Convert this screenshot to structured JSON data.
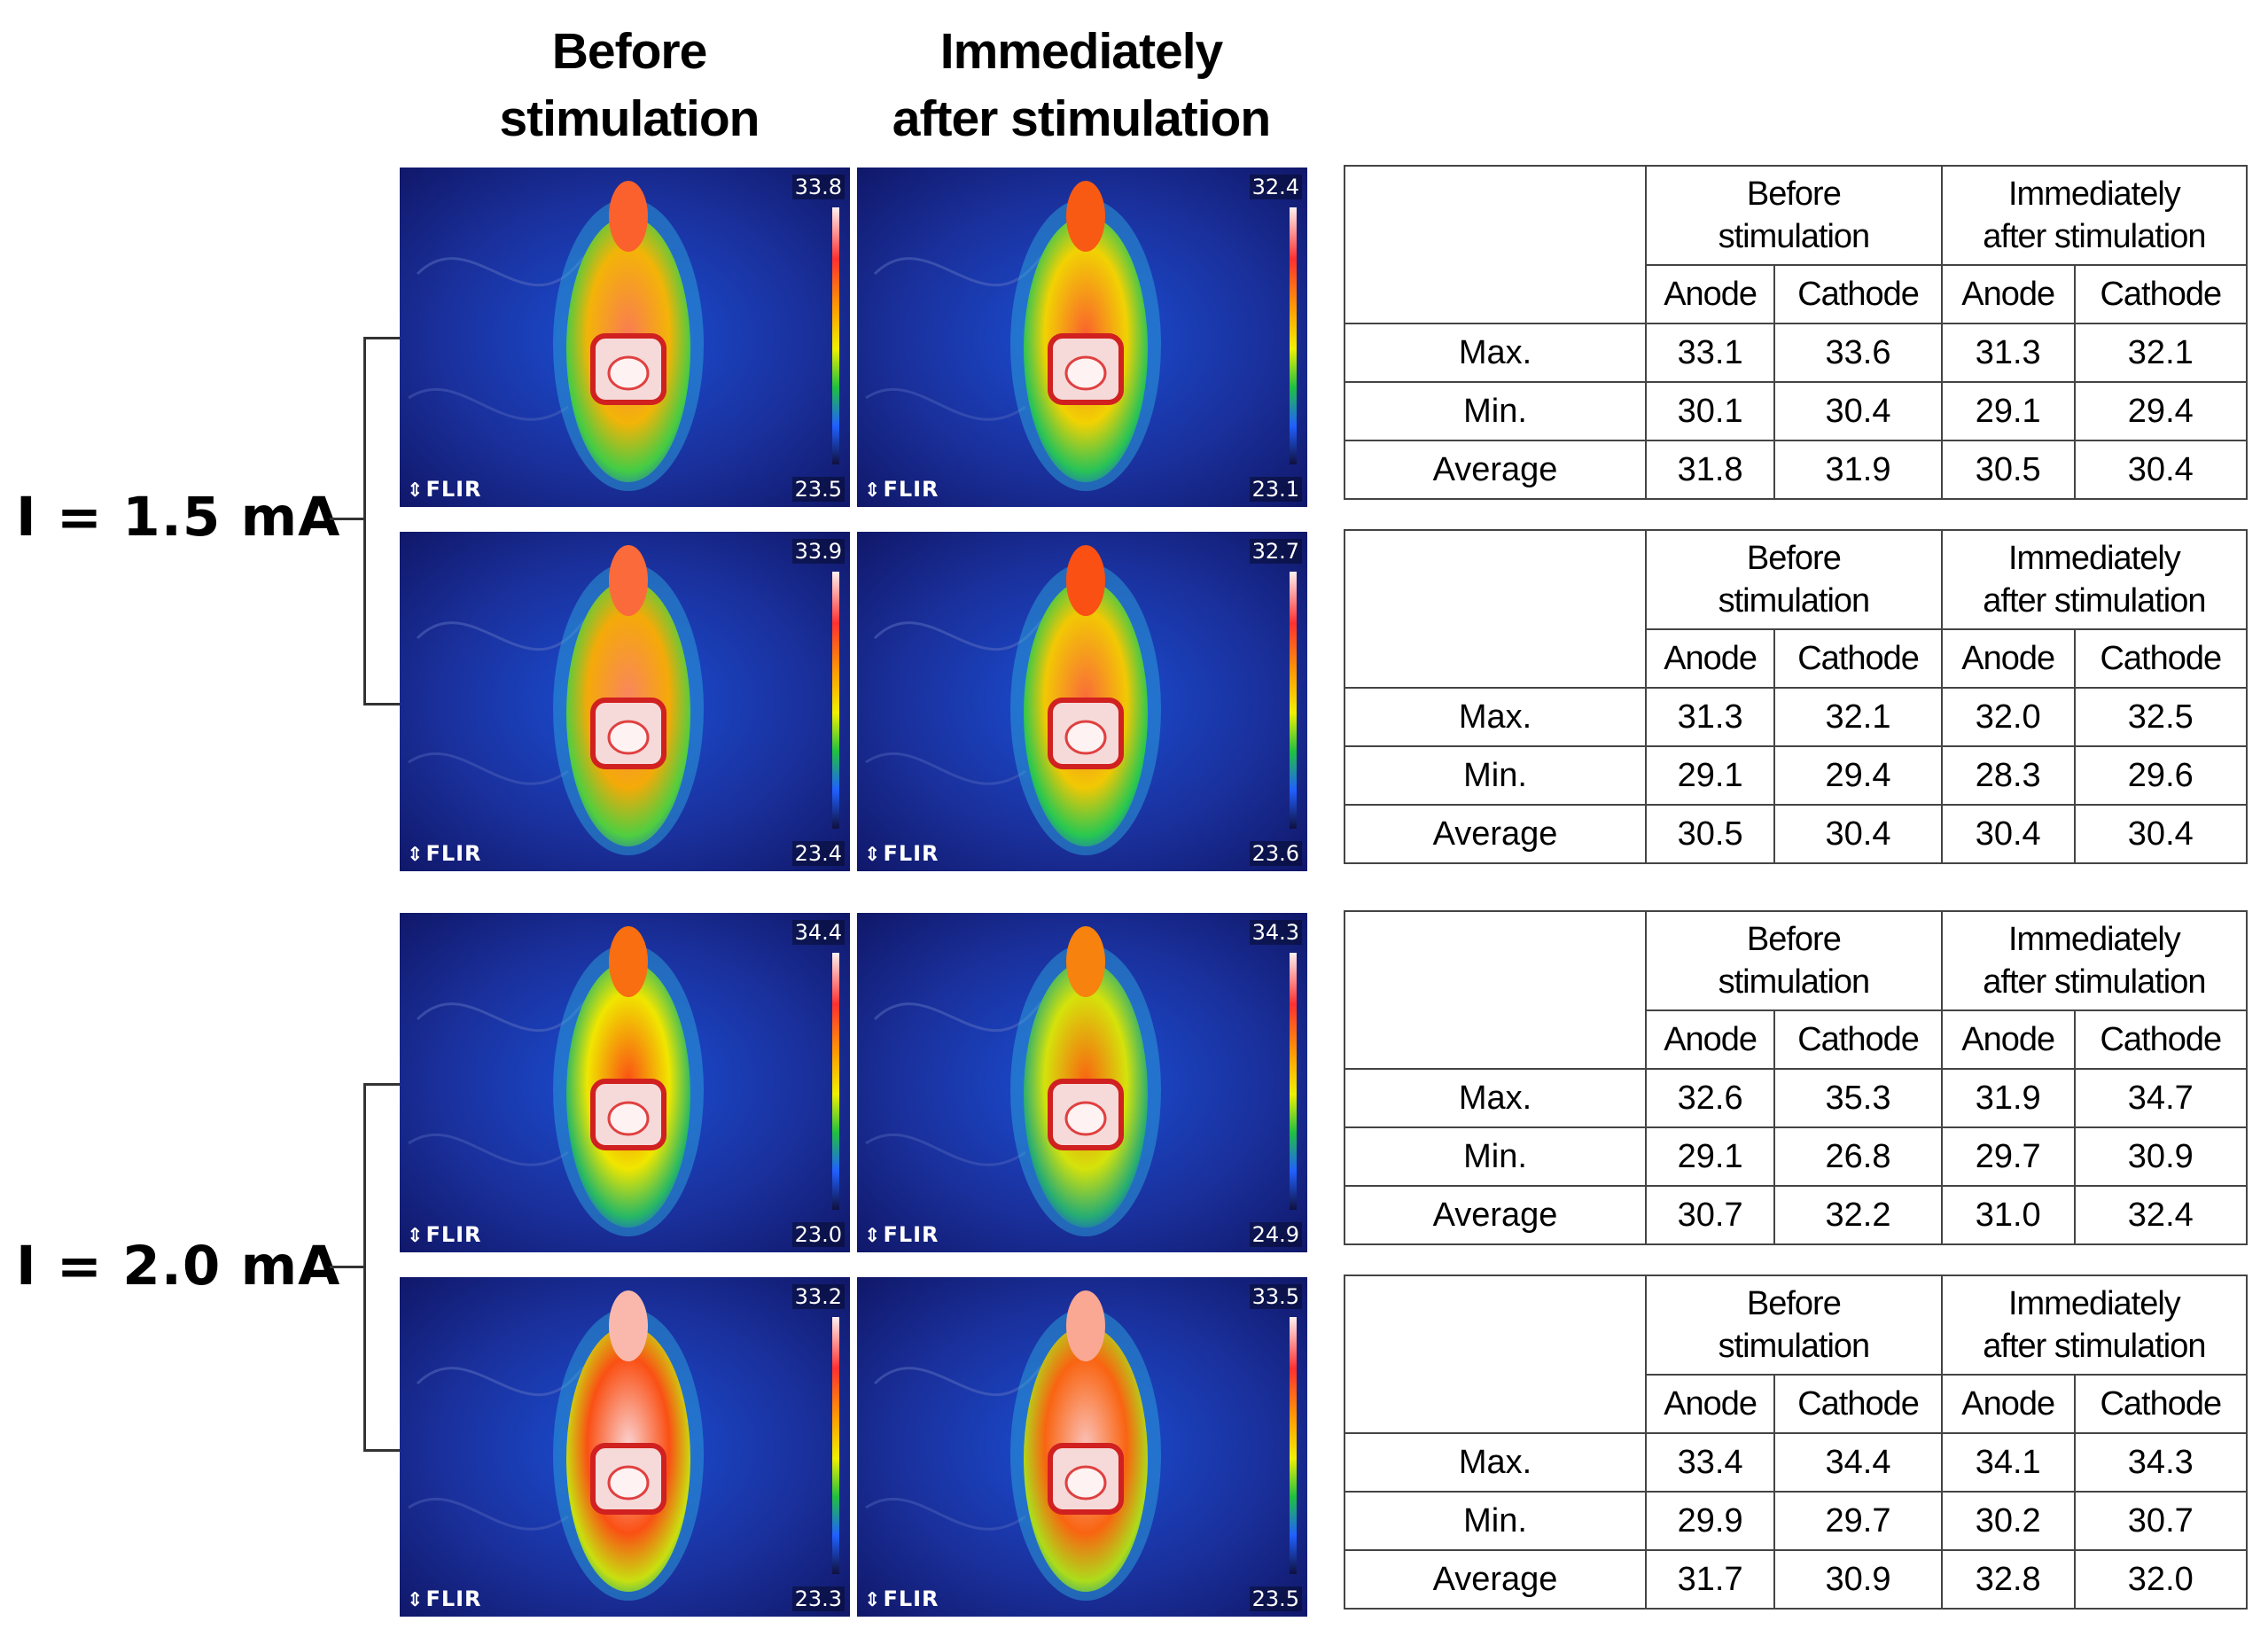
{
  "columns": {
    "before": [
      "Before",
      "stimulation"
    ],
    "after": [
      "Immediately",
      "after stimulation"
    ]
  },
  "groups": [
    {
      "label": "I = 1.5 mA"
    },
    {
      "label": "I = 2.0 mA"
    }
  ],
  "images": [
    {
      "brand": "FLIR",
      "scale_max": "33.8",
      "scale_min": "23.5",
      "body_level": 0.75
    },
    {
      "brand": "FLIR",
      "scale_max": "32.4",
      "scale_min": "23.1",
      "body_level": 0.72
    },
    {
      "brand": "FLIR",
      "scale_max": "33.9",
      "scale_min": "23.4",
      "body_level": 0.76
    },
    {
      "brand": "FLIR",
      "scale_max": "32.7",
      "scale_min": "23.6",
      "body_level": 0.73
    },
    {
      "brand": "FLIR",
      "scale_max": "34.4",
      "scale_min": "23.0",
      "body_level": 0.7
    },
    {
      "brand": "FLIR",
      "scale_max": "34.3",
      "scale_min": "24.9",
      "body_level": 0.68
    },
    {
      "brand": "FLIR",
      "scale_max": "33.2",
      "scale_min": "23.3",
      "body_level": 0.85
    },
    {
      "brand": "FLIR",
      "scale_max": "33.5",
      "scale_min": "23.5",
      "body_level": 0.83
    }
  ],
  "table_header": {
    "before": [
      "Before",
      "stimulation"
    ],
    "after": [
      "Immediately",
      "after stimulation"
    ],
    "anode": "Anode",
    "cathode": "Cathode"
  },
  "tables": [
    {
      "rows": [
        {
          "label": "Max.",
          "values": [
            "33.1",
            "33.6",
            "31.3",
            "32.1"
          ]
        },
        {
          "label": "Min.",
          "values": [
            "30.1",
            "30.4",
            "29.1",
            "29.4"
          ]
        },
        {
          "label": "Average",
          "values": [
            "31.8",
            "31.9",
            "30.5",
            "30.4"
          ]
        }
      ]
    },
    {
      "rows": [
        {
          "label": "Max.",
          "values": [
            "31.3",
            "32.1",
            "32.0",
            "32.5"
          ]
        },
        {
          "label": "Min.",
          "values": [
            "29.1",
            "29.4",
            "28.3",
            "29.6"
          ]
        },
        {
          "label": "Average",
          "values": [
            "30.5",
            "30.4",
            "30.4",
            "30.4"
          ]
        }
      ]
    },
    {
      "rows": [
        {
          "label": "Max.",
          "values": [
            "32.6",
            "35.3",
            "31.9",
            "34.7"
          ]
        },
        {
          "label": "Min.",
          "values": [
            "29.1",
            "26.8",
            "29.7",
            "30.9"
          ]
        },
        {
          "label": "Average",
          "values": [
            "30.7",
            "32.2",
            "31.0",
            "32.4"
          ]
        }
      ]
    },
    {
      "rows": [
        {
          "label": "Max.",
          "values": [
            "33.4",
            "34.4",
            "34.1",
            "34.3"
          ]
        },
        {
          "label": "Min.",
          "values": [
            "29.9",
            "29.7",
            "30.2",
            "30.7"
          ]
        },
        {
          "label": "Average",
          "values": [
            "31.7",
            "30.9",
            "32.8",
            "32.0"
          ]
        }
      ]
    }
  ]
}
